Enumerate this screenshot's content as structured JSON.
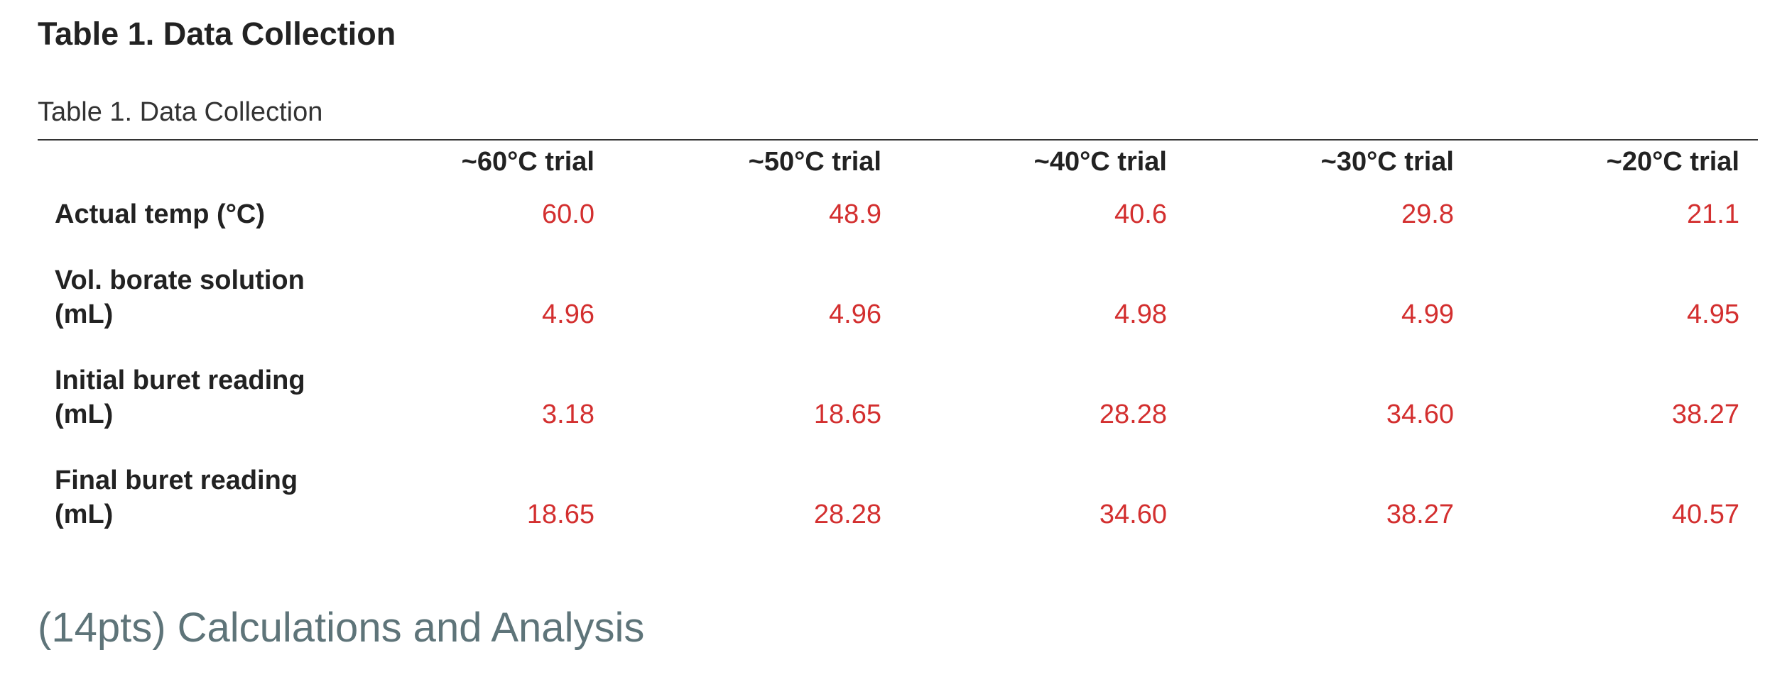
{
  "title": "Table 1. Data Collection",
  "table": {
    "caption": "Table 1. Data Collection",
    "header": [
      "~60°C trial",
      "~50°C trial",
      "~40°C trial",
      "~30°C trial",
      "~20°C trial"
    ],
    "rows": [
      {
        "label": "Actual temp (°C)",
        "values": [
          "60.0",
          "48.9",
          "40.6",
          "29.8",
          "21.1"
        ]
      },
      {
        "label": "Vol. borate solution (mL)",
        "values": [
          "4.96",
          "4.96",
          "4.98",
          "4.99",
          "4.95"
        ]
      },
      {
        "label": "Initial buret reading (mL)",
        "values": [
          "3.18",
          "18.65",
          "28.28",
          "34.60",
          "38.27"
        ]
      },
      {
        "label": "Final buret reading (mL)",
        "values": [
          "18.65",
          "28.28",
          "34.60",
          "38.27",
          "40.57"
        ]
      }
    ]
  },
  "section_heading": "(14pts) Calculations and Analysis"
}
